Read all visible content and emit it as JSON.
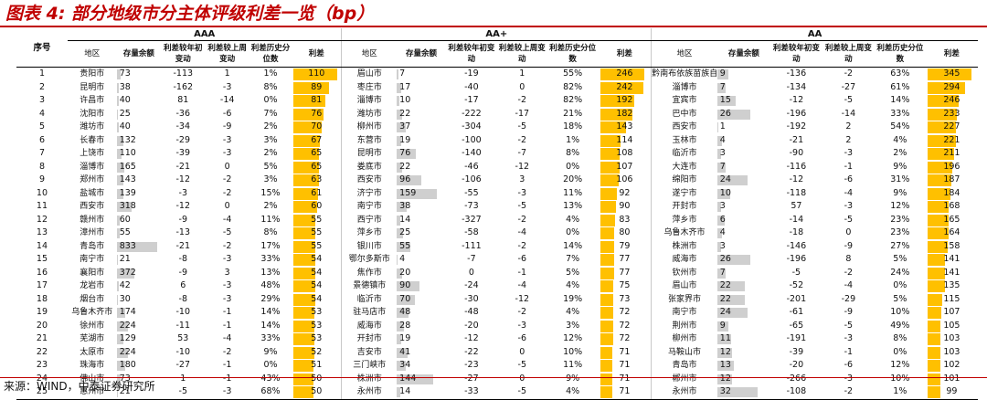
{
  "title": "图表 4:  部分地级市分主体评级利差一览（bp）",
  "source": "来源：WIND，中泰证券研究所",
  "colors": {
    "title": "#c00000",
    "spread_bar": "#ffc000",
    "balance_bar": "#cfcfcf"
  },
  "index_header": "序号",
  "groups": [
    {
      "label": "AAA",
      "max_balance": 833,
      "max_spread": 110,
      "headers": [
        "地区",
        "存量余额",
        "利差较年初变动",
        "利差较上周变动",
        "利差历史分位数",
        "利差"
      ],
      "rows": [
        [
          "贵阳市",
          "73",
          "-113",
          "1",
          "1%",
          "110"
        ],
        [
          "昆明市",
          "38",
          "-162",
          "-3",
          "8%",
          "89"
        ],
        [
          "许昌市",
          "40",
          "81",
          "-14",
          "0%",
          "81"
        ],
        [
          "沈阳市",
          "25",
          "-36",
          "-6",
          "7%",
          "76"
        ],
        [
          "潍坊市",
          "40",
          "-34",
          "-9",
          "2%",
          "70"
        ],
        [
          "长春市",
          "132",
          "-29",
          "-3",
          "3%",
          "67"
        ],
        [
          "上饶市",
          "110",
          "-39",
          "-3",
          "2%",
          "65"
        ],
        [
          "淄博市",
          "165",
          "-21",
          "0",
          "5%",
          "65"
        ],
        [
          "郑州市",
          "143",
          "-12",
          "-2",
          "3%",
          "63"
        ],
        [
          "盐城市",
          "139",
          "-3",
          "-2",
          "15%",
          "61"
        ],
        [
          "西安市",
          "318",
          "-12",
          "0",
          "2%",
          "60"
        ],
        [
          "赣州市",
          "60",
          "-9",
          "-4",
          "11%",
          "55"
        ],
        [
          "漳州市",
          "55",
          "-13",
          "-5",
          "8%",
          "55"
        ],
        [
          "青岛市",
          "833",
          "-21",
          "-2",
          "17%",
          "55"
        ],
        [
          "南宁市",
          "21",
          "-8",
          "-3",
          "33%",
          "54"
        ],
        [
          "襄阳市",
          "372",
          "-9",
          "3",
          "13%",
          "54"
        ],
        [
          "龙岩市",
          "42",
          "6",
          "-3",
          "48%",
          "54"
        ],
        [
          "烟台市",
          "30",
          "-8",
          "-3",
          "29%",
          "54"
        ],
        [
          "乌鲁木齐市",
          "174",
          "-10",
          "-1",
          "14%",
          "53"
        ],
        [
          "徐州市",
          "224",
          "-11",
          "-1",
          "14%",
          "53"
        ],
        [
          "芜湖市",
          "129",
          "53",
          "-4",
          "33%",
          "53"
        ],
        [
          "太原市",
          "224",
          "-10",
          "-2",
          "9%",
          "52"
        ],
        [
          "珠海市",
          "180",
          "-27",
          "-1",
          "0%",
          "51"
        ],
        [
          "佛山市",
          "73",
          "1",
          "-1",
          "43%",
          "50"
        ],
        [
          "惠州市",
          "21",
          "-5",
          "-3",
          "68%",
          "50"
        ]
      ]
    },
    {
      "label": "AA+",
      "max_balance": 159,
      "max_spread": 246,
      "headers": [
        "地区",
        "存量余额",
        "利差较年初变动",
        "利差较上周变动",
        "利差历史分位数",
        "利差"
      ],
      "rows": [
        [
          "眉山市",
          "7",
          "-19",
          "1",
          "55%",
          "246"
        ],
        [
          "枣庄市",
          "17",
          "-40",
          "0",
          "82%",
          "242"
        ],
        [
          "淄博市",
          "10",
          "-17",
          "-2",
          "82%",
          "192"
        ],
        [
          "潍坊市",
          "22",
          "-222",
          "-17",
          "21%",
          "182"
        ],
        [
          "柳州市",
          "37",
          "-304",
          "-5",
          "18%",
          "143"
        ],
        [
          "东营市",
          "19",
          "-100",
          "-2",
          "1%",
          "114"
        ],
        [
          "昆明市",
          "76",
          "-140",
          "-7",
          "8%",
          "108"
        ],
        [
          "娄底市",
          "22",
          "-46",
          "-12",
          "0%",
          "107"
        ],
        [
          "西安市",
          "96",
          "-106",
          "3",
          "20%",
          "106"
        ],
        [
          "济宁市",
          "159",
          "-55",
          "-3",
          "11%",
          "92"
        ],
        [
          "南宁市",
          "38",
          "-73",
          "-5",
          "13%",
          "90"
        ],
        [
          "西宁市",
          "14",
          "-327",
          "-2",
          "4%",
          "83"
        ],
        [
          "萍乡市",
          "25",
          "-58",
          "-4",
          "0%",
          "80"
        ],
        [
          "银川市",
          "55",
          "-111",
          "-2",
          "14%",
          "79"
        ],
        [
          "鄂尔多斯市",
          "4",
          "-7",
          "-6",
          "7%",
          "77"
        ],
        [
          "焦作市",
          "20",
          "0",
          "-1",
          "5%",
          "77"
        ],
        [
          "景德镇市",
          "90",
          "-24",
          "-4",
          "4%",
          "75"
        ],
        [
          "临沂市",
          "70",
          "-30",
          "-12",
          "19%",
          "73"
        ],
        [
          "驻马店市",
          "48",
          "-48",
          "-2",
          "4%",
          "72"
        ],
        [
          "威海市",
          "28",
          "-20",
          "-3",
          "3%",
          "72"
        ],
        [
          "开封市",
          "19",
          "-12",
          "-6",
          "12%",
          "72"
        ],
        [
          "吉安市",
          "41",
          "-22",
          "0",
          "10%",
          "71"
        ],
        [
          "三门峡市",
          "34",
          "-23",
          "-5",
          "11%",
          "71"
        ],
        [
          "株洲市",
          "144",
          "-27",
          "0",
          "9%",
          "71"
        ],
        [
          "永州市",
          "14",
          "-33",
          "-5",
          "4%",
          "71"
        ]
      ]
    },
    {
      "label": "AA",
      "max_balance": 32,
      "max_spread": 345,
      "headers": [
        "地区",
        "存量余额",
        "利差较年初变动",
        "利差较上周变动",
        "利差历史分位数",
        "利差"
      ],
      "rows": [
        [
          "黔南布依族苗族自治州",
          "9",
          "-136",
          "-2",
          "63%",
          "345"
        ],
        [
          "淄博市",
          "7",
          "-134",
          "-27",
          "61%",
          "294"
        ],
        [
          "宜宾市",
          "15",
          "-12",
          "-5",
          "14%",
          "246"
        ],
        [
          "巴中市",
          "26",
          "-196",
          "-14",
          "33%",
          "233"
        ],
        [
          "西安市",
          "1",
          "-192",
          "2",
          "54%",
          "227"
        ],
        [
          "玉林市",
          "4",
          "-21",
          "2",
          "4%",
          "221"
        ],
        [
          "临沂市",
          "3",
          "-90",
          "-3",
          "2%",
          "211"
        ],
        [
          "大连市",
          "7",
          "-116",
          "-1",
          "9%",
          "196"
        ],
        [
          "绵阳市",
          "24",
          "-12",
          "-6",
          "31%",
          "187"
        ],
        [
          "遂宁市",
          "10",
          "-118",
          "-4",
          "9%",
          "184"
        ],
        [
          "开封市",
          "3",
          "57",
          "-3",
          "12%",
          "168"
        ],
        [
          "萍乡市",
          "6",
          "-14",
          "-5",
          "23%",
          "165"
        ],
        [
          "乌鲁木齐市",
          "4",
          "-18",
          "0",
          "23%",
          "164"
        ],
        [
          "株洲市",
          "3",
          "-146",
          "-9",
          "27%",
          "158"
        ],
        [
          "威海市",
          "26",
          "-196",
          "8",
          "5%",
          "141"
        ],
        [
          "钦州市",
          "7",
          "-5",
          "-2",
          "24%",
          "141"
        ],
        [
          "眉山市",
          "22",
          "-52",
          "-4",
          "0%",
          "135"
        ],
        [
          "张家界市",
          "22",
          "-201",
          "-29",
          "5%",
          "115"
        ],
        [
          "南宁市",
          "24",
          "-61",
          "-9",
          "10%",
          "107"
        ],
        [
          "荆州市",
          "9",
          "-65",
          "-5",
          "49%",
          "105"
        ],
        [
          "柳州市",
          "11",
          "-191",
          "-3",
          "8%",
          "103"
        ],
        [
          "马鞍山市",
          "12",
          "-39",
          "-1",
          "0%",
          "103"
        ],
        [
          "青岛市",
          "13",
          "-20",
          "-6",
          "12%",
          "102"
        ],
        [
          "郴州市",
          "12",
          "-266",
          "-3",
          "10%",
          "101"
        ],
        [
          "永州市",
          "32",
          "-108",
          "-2",
          "1%",
          "99"
        ]
      ]
    }
  ]
}
